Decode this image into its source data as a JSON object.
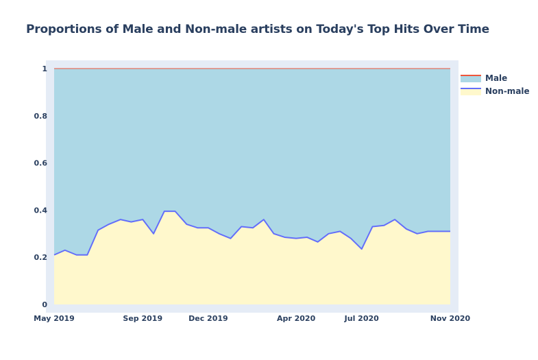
{
  "title": "Proportions of Male and Non-male artists on Today's Top Hits Over Time",
  "chart_data": {
    "type": "area",
    "stacked": true,
    "title": "Proportions of Male and Non-male artists on Today's Top Hits Over Time",
    "xlabel": "",
    "ylabel": "",
    "x_range": [
      "2019-05-01",
      "2020-11-01"
    ],
    "ylim": [
      0,
      1
    ],
    "x_tick_labels": [
      "May 2019",
      "Sep 2019",
      "Dec 2019",
      "Apr 2020",
      "Jul 2020",
      "Nov 2020"
    ],
    "y_tick_labels": [
      "0",
      "0.2",
      "0.4",
      "0.6",
      "0.8",
      "1"
    ],
    "grid": false,
    "legend_position": "top-right",
    "x": [
      "2019-05-01",
      "2019-05-16",
      "2019-06-01",
      "2019-06-16",
      "2019-07-01",
      "2019-07-16",
      "2019-08-01",
      "2019-08-16",
      "2019-09-01",
      "2019-09-16",
      "2019-10-01",
      "2019-10-16",
      "2019-11-01",
      "2019-11-16",
      "2019-12-01",
      "2019-12-16",
      "2020-01-01",
      "2020-01-16",
      "2020-02-01",
      "2020-02-16",
      "2020-03-01",
      "2020-03-16",
      "2020-04-01",
      "2020-04-16",
      "2020-05-01",
      "2020-05-16",
      "2020-06-01",
      "2020-06-16",
      "2020-07-01",
      "2020-07-16",
      "2020-08-01",
      "2020-08-16",
      "2020-09-01",
      "2020-09-16",
      "2020-10-01",
      "2020-10-16",
      "2020-11-01"
    ],
    "series": [
      {
        "name": "Non-male",
        "line_color": "#636efa",
        "fill_color": "#fff8cc",
        "values": [
          0.21,
          0.23,
          0.21,
          0.21,
          0.315,
          0.34,
          0.36,
          0.35,
          0.36,
          0.3,
          0.395,
          0.395,
          0.34,
          0.325,
          0.325,
          0.3,
          0.28,
          0.33,
          0.325,
          0.36,
          0.3,
          0.285,
          0.28,
          0.285,
          0.265,
          0.3,
          0.31,
          0.28,
          0.235,
          0.33,
          0.335,
          0.36,
          0.32,
          0.3,
          0.31,
          0.31,
          0.31
        ]
      },
      {
        "name": "Male",
        "line_color": "#ef553b",
        "fill_color": "#add8e6",
        "values": [
          0.79,
          0.77,
          0.79,
          0.79,
          0.685,
          0.66,
          0.64,
          0.65,
          0.64,
          0.7,
          0.605,
          0.605,
          0.66,
          0.675,
          0.675,
          0.7,
          0.72,
          0.67,
          0.675,
          0.64,
          0.7,
          0.715,
          0.72,
          0.715,
          0.735,
          0.7,
          0.69,
          0.72,
          0.765,
          0.67,
          0.665,
          0.64,
          0.68,
          0.7,
          0.69,
          0.69,
          0.69
        ]
      }
    ]
  }
}
